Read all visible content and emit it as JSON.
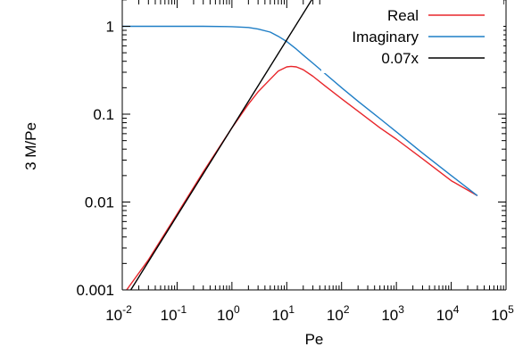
{
  "chart_data": {
    "type": "line",
    "title": "",
    "xlabel": "Pe",
    "ylabel": "3 M/Pe",
    "x_scale": "log",
    "y_scale": "log",
    "xlim": [
      0.01,
      100000
    ],
    "ylim": [
      0.001,
      2
    ],
    "x_ticks": [
      {
        "base": "10",
        "exp": "-2",
        "value": 0.01
      },
      {
        "base": "10",
        "exp": "-1",
        "value": 0.1
      },
      {
        "base": "10",
        "exp": "0",
        "value": 1
      },
      {
        "base": "10",
        "exp": "1",
        "value": 10
      },
      {
        "base": "10",
        "exp": "2",
        "value": 100
      },
      {
        "base": "10",
        "exp": "3",
        "value": 1000
      },
      {
        "base": "10",
        "exp": "4",
        "value": 10000
      },
      {
        "base": "10",
        "exp": "5",
        "value": 100000
      }
    ],
    "y_ticks": [
      {
        "label": "0.001",
        "value": 0.001
      },
      {
        "label": "0.01",
        "value": 0.01
      },
      {
        "label": "0.1",
        "value": 0.1
      },
      {
        "label": "1",
        "value": 1
      }
    ],
    "grid": false,
    "legend_position": "top-right",
    "series": [
      {
        "name": "Real",
        "color": "#e8262b",
        "x": [
          0.012,
          0.03,
          0.1,
          0.3,
          1,
          2,
          3,
          5,
          7,
          10,
          12,
          15,
          20,
          30,
          50,
          100,
          200,
          500,
          1000,
          3000,
          10000,
          30000
        ],
        "y": [
          0.001,
          0.0022,
          0.0073,
          0.022,
          0.07,
          0.13,
          0.18,
          0.25,
          0.31,
          0.345,
          0.35,
          0.345,
          0.32,
          0.27,
          0.21,
          0.15,
          0.108,
          0.07,
          0.052,
          0.031,
          0.0175,
          0.0118
        ]
      },
      {
        "name": "Imaginary",
        "color": "#1f7ec6",
        "x": [
          0.01,
          0.1,
          0.3,
          1,
          2,
          3,
          5,
          7,
          10,
          15,
          20,
          30,
          50,
          100,
          200,
          500,
          1000,
          3000,
          10000,
          30000
        ],
        "y": [
          1,
          1,
          1,
          0.99,
          0.97,
          0.93,
          0.86,
          0.77,
          0.67,
          0.55,
          0.47,
          0.38,
          0.29,
          0.2,
          0.14,
          0.089,
          0.063,
          0.036,
          0.02,
          0.0118
        ]
      },
      {
        "name": "0.07x",
        "color": "#000000",
        "x": [
          0.014,
          28.6
        ],
        "y": [
          0.00098,
          2.0
        ]
      }
    ]
  }
}
